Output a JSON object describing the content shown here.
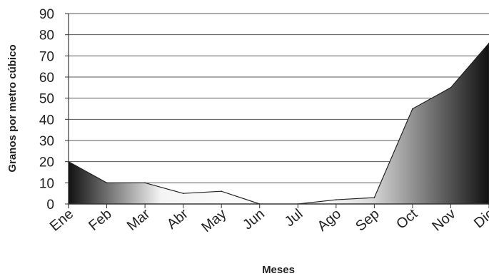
{
  "chart_data": {
    "type": "area",
    "title": "",
    "xlabel": "Meses",
    "ylabel": "Granos por metro cúbico",
    "categories": [
      "Ene",
      "Feb",
      "Mar",
      "Abr",
      "May",
      "Jun",
      "Jul",
      "Ago",
      "Sep",
      "Oct",
      "Nov",
      "Dic"
    ],
    "series": [
      {
        "values": [
          20,
          10,
          10,
          5,
          6,
          0,
          0,
          2,
          3,
          45,
          55,
          76
        ]
      }
    ],
    "ylim": [
      0,
      90
    ],
    "yticks": [
      0,
      10,
      20,
      30,
      40,
      50,
      60,
      70,
      80,
      90
    ],
    "grid": true,
    "legend": "none"
  }
}
